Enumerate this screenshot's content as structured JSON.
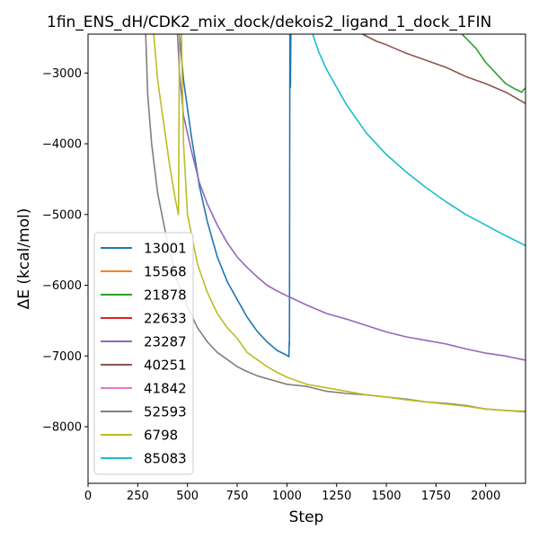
{
  "chart_data": {
    "type": "line",
    "title": "1fin_ENS_dH/CDK2_mix_dock/dekois2_ligand_1_dock_1FIN",
    "xlabel": "Step",
    "ylabel": "ΔE (kcal/mol)",
    "xlim": [
      0,
      2200
    ],
    "ylim": [
      -8800,
      -2450
    ],
    "xticks": [
      0,
      250,
      500,
      750,
      1000,
      1250,
      1500,
      1750,
      2000
    ],
    "xtick_labels": [
      "0",
      "250",
      "500",
      "750",
      "1000",
      "1250",
      "1500",
      "1750",
      "2000"
    ],
    "yticks": [
      -8000,
      -7000,
      -6000,
      -5000,
      -4000,
      -3000
    ],
    "ytick_labels": [
      "−8000",
      "−7000",
      "−6000",
      "−5000",
      "−4000",
      "−3000"
    ],
    "grid": false,
    "legend_position": "lower-left",
    "series": [
      {
        "name": "13001",
        "color": "#1f77b4",
        "points": [
          [
            460,
            -2450
          ],
          [
            480,
            -3100
          ],
          [
            520,
            -3900
          ],
          [
            560,
            -4600
          ],
          [
            600,
            -5100
          ],
          [
            650,
            -5600
          ],
          [
            700,
            -5950
          ],
          [
            750,
            -6200
          ],
          [
            800,
            -6450
          ],
          [
            850,
            -6650
          ],
          [
            900,
            -6800
          ],
          [
            950,
            -6920
          ],
          [
            1000,
            -6990
          ],
          [
            1010,
            -7010
          ],
          [
            1012,
            -6800
          ],
          [
            1013,
            -6850
          ],
          [
            1015,
            -2450
          ],
          [
            1018,
            -3200
          ],
          [
            1020,
            -2450
          ]
        ]
      },
      {
        "name": "15568",
        "color": "#ff7f0e",
        "points": []
      },
      {
        "name": "21878",
        "color": "#2ca02c",
        "points": [
          [
            1880,
            -2450
          ],
          [
            1950,
            -2650
          ],
          [
            2000,
            -2850
          ],
          [
            2050,
            -3000
          ],
          [
            2100,
            -3150
          ],
          [
            2150,
            -3230
          ],
          [
            2180,
            -3270
          ],
          [
            2200,
            -3210
          ]
        ]
      },
      {
        "name": "22633",
        "color": "#d62728",
        "points": []
      },
      {
        "name": "23287",
        "color": "#9467bd",
        "points": [
          [
            450,
            -2450
          ],
          [
            460,
            -3000
          ],
          [
            480,
            -3600
          ],
          [
            520,
            -4100
          ],
          [
            560,
            -4550
          ],
          [
            600,
            -4850
          ],
          [
            650,
            -5150
          ],
          [
            700,
            -5400
          ],
          [
            750,
            -5600
          ],
          [
            800,
            -5750
          ],
          [
            850,
            -5880
          ],
          [
            900,
            -6000
          ],
          [
            950,
            -6080
          ],
          [
            1000,
            -6150
          ],
          [
            1100,
            -6280
          ],
          [
            1200,
            -6400
          ],
          [
            1300,
            -6480
          ],
          [
            1400,
            -6570
          ],
          [
            1500,
            -6660
          ],
          [
            1600,
            -6730
          ],
          [
            1700,
            -6780
          ],
          [
            1800,
            -6830
          ],
          [
            1900,
            -6900
          ],
          [
            2000,
            -6960
          ],
          [
            2100,
            -7000
          ],
          [
            2200,
            -7060
          ]
        ]
      },
      {
        "name": "40251",
        "color": "#8c564b",
        "points": [
          [
            1380,
            -2450
          ],
          [
            1450,
            -2550
          ],
          [
            1500,
            -2600
          ],
          [
            1600,
            -2720
          ],
          [
            1700,
            -2820
          ],
          [
            1800,
            -2920
          ],
          [
            1900,
            -3050
          ],
          [
            2000,
            -3150
          ],
          [
            2100,
            -3270
          ],
          [
            2200,
            -3430
          ]
        ]
      },
      {
        "name": "41842",
        "color": "#e377c2",
        "points": []
      },
      {
        "name": "52593",
        "color": "#7f7f7f",
        "points": [
          [
            290,
            -2450
          ],
          [
            300,
            -3300
          ],
          [
            320,
            -4000
          ],
          [
            350,
            -4700
          ],
          [
            400,
            -5400
          ],
          [
            450,
            -5950
          ],
          [
            500,
            -6300
          ],
          [
            550,
            -6600
          ],
          [
            600,
            -6800
          ],
          [
            650,
            -6950
          ],
          [
            700,
            -7050
          ],
          [
            750,
            -7150
          ],
          [
            800,
            -7220
          ],
          [
            850,
            -7280
          ],
          [
            900,
            -7320
          ],
          [
            950,
            -7360
          ],
          [
            1000,
            -7400
          ],
          [
            1100,
            -7430
          ],
          [
            1200,
            -7500
          ],
          [
            1300,
            -7530
          ],
          [
            1400,
            -7550
          ],
          [
            1500,
            -7580
          ],
          [
            1600,
            -7610
          ],
          [
            1700,
            -7650
          ],
          [
            1800,
            -7670
          ],
          [
            1900,
            -7700
          ],
          [
            2000,
            -7750
          ],
          [
            2100,
            -7770
          ],
          [
            2200,
            -7790
          ]
        ]
      },
      {
        "name": "6798",
        "color": "#bcbd22",
        "points": [
          [
            330,
            -2450
          ],
          [
            350,
            -3100
          ],
          [
            380,
            -3700
          ],
          [
            410,
            -4300
          ],
          [
            440,
            -4800
          ],
          [
            455,
            -5000
          ],
          [
            460,
            -2450
          ],
          [
            470,
            -2450
          ],
          [
            480,
            -4000
          ],
          [
            500,
            -5000
          ],
          [
            550,
            -5700
          ],
          [
            600,
            -6100
          ],
          [
            650,
            -6400
          ],
          [
            700,
            -6600
          ],
          [
            750,
            -6750
          ],
          [
            800,
            -6950
          ],
          [
            850,
            -7050
          ],
          [
            900,
            -7150
          ],
          [
            950,
            -7230
          ],
          [
            1000,
            -7300
          ],
          [
            1100,
            -7400
          ],
          [
            1200,
            -7450
          ],
          [
            1300,
            -7500
          ],
          [
            1400,
            -7550
          ],
          [
            1500,
            -7580
          ],
          [
            1600,
            -7620
          ],
          [
            1700,
            -7650
          ],
          [
            1800,
            -7680
          ],
          [
            1900,
            -7710
          ],
          [
            2000,
            -7750
          ],
          [
            2100,
            -7770
          ],
          [
            2200,
            -7780
          ]
        ]
      },
      {
        "name": "85083",
        "color": "#17becf",
        "points": [
          [
            1130,
            -2450
          ],
          [
            1160,
            -2700
          ],
          [
            1200,
            -2950
          ],
          [
            1250,
            -3200
          ],
          [
            1300,
            -3450
          ],
          [
            1400,
            -3850
          ],
          [
            1500,
            -4150
          ],
          [
            1600,
            -4400
          ],
          [
            1700,
            -4620
          ],
          [
            1800,
            -4820
          ],
          [
            1900,
            -5000
          ],
          [
            2000,
            -5150
          ],
          [
            2100,
            -5300
          ],
          [
            2200,
            -5440
          ]
        ]
      }
    ]
  }
}
